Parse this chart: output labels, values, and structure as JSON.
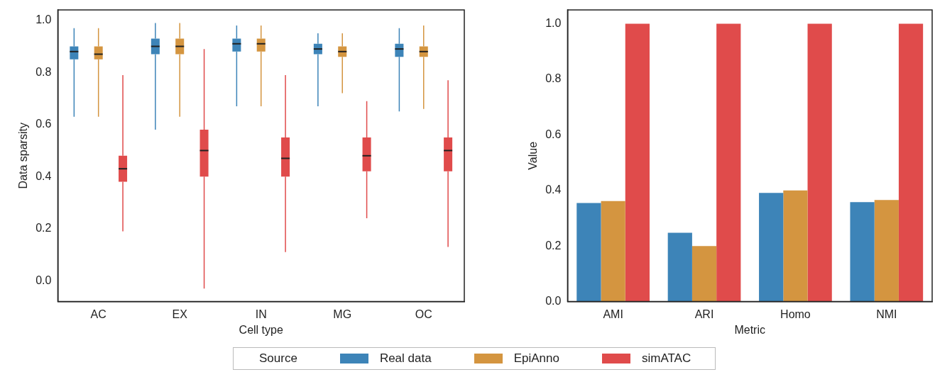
{
  "chart_data": [
    {
      "type": "box",
      "xlabel": "Cell type",
      "ylabel": "Data sparsity",
      "categories": [
        "AC",
        "EX",
        "IN",
        "MG",
        "OC"
      ],
      "ylim": [
        -0.08,
        1.04
      ],
      "yticks": [
        {
          "value": 0,
          "label": "0.0"
        },
        {
          "value": 0.2,
          "label": "0.2"
        },
        {
          "value": 0.4,
          "label": "0.4"
        },
        {
          "value": 0.6,
          "label": "0.6"
        },
        {
          "value": 0.8,
          "label": "0.8"
        },
        {
          "value": 1,
          "label": "1.0"
        }
      ],
      "legend": "bottom",
      "legend_title": "Source",
      "series": [
        {
          "name": "Real data",
          "color": "#3d84b8",
          "boxes": [
            {
              "low": 0.63,
              "q1": 0.85,
              "median": 0.88,
              "q3": 0.9,
              "high": 0.97
            },
            {
              "low": 0.58,
              "q1": 0.87,
              "median": 0.9,
              "q3": 0.93,
              "high": 0.99
            },
            {
              "low": 0.67,
              "q1": 0.88,
              "median": 0.91,
              "q3": 0.93,
              "high": 0.98
            },
            {
              "low": 0.67,
              "q1": 0.87,
              "median": 0.89,
              "q3": 0.91,
              "high": 0.95
            },
            {
              "low": 0.65,
              "q1": 0.86,
              "median": 0.89,
              "q3": 0.91,
              "high": 0.97
            }
          ]
        },
        {
          "name": "EpiAnno",
          "color": "#d49540",
          "boxes": [
            {
              "low": 0.63,
              "q1": 0.85,
              "median": 0.87,
              "q3": 0.9,
              "high": 0.97
            },
            {
              "low": 0.63,
              "q1": 0.87,
              "median": 0.9,
              "q3": 0.93,
              "high": 0.99
            },
            {
              "low": 0.67,
              "q1": 0.88,
              "median": 0.91,
              "q3": 0.93,
              "high": 0.98
            },
            {
              "low": 0.72,
              "q1": 0.86,
              "median": 0.88,
              "q3": 0.9,
              "high": 0.95
            },
            {
              "low": 0.66,
              "q1": 0.86,
              "median": 0.88,
              "q3": 0.9,
              "high": 0.98
            }
          ]
        },
        {
          "name": "simATAC",
          "color": "#e04b4b",
          "boxes": [
            {
              "low": 0.19,
              "q1": 0.38,
              "median": 0.43,
              "q3": 0.48,
              "high": 0.79
            },
            {
              "low": -0.03,
              "q1": 0.4,
              "median": 0.5,
              "q3": 0.58,
              "high": 0.89
            },
            {
              "low": 0.11,
              "q1": 0.4,
              "median": 0.47,
              "q3": 0.55,
              "high": 0.79
            },
            {
              "low": 0.24,
              "q1": 0.42,
              "median": 0.48,
              "q3": 0.55,
              "high": 0.69
            },
            {
              "low": 0.13,
              "q1": 0.42,
              "median": 0.5,
              "q3": 0.55,
              "high": 0.77
            }
          ]
        }
      ]
    },
    {
      "type": "bar",
      "xlabel": "Metric",
      "ylabel": "Value",
      "categories": [
        "AMI",
        "ARI",
        "Homo",
        "NMI"
      ],
      "ylim": [
        0,
        1.05
      ],
      "yticks": [
        {
          "value": 0,
          "label": "0.0"
        },
        {
          "value": 0.2,
          "label": "0.2"
        },
        {
          "value": 0.4,
          "label": "0.4"
        },
        {
          "value": 0.6,
          "label": "0.6"
        },
        {
          "value": 0.8,
          "label": "0.8"
        },
        {
          "value": 1,
          "label": "1.0"
        }
      ],
      "series": [
        {
          "color": "#3d84b8",
          "values": [
            0.355,
            0.248,
            0.391,
            0.358
          ]
        },
        {
          "color": "#d49540",
          "values": [
            0.362,
            0.2,
            0.4,
            0.366
          ]
        },
        {
          "color": "#e04b4b",
          "values": [
            1,
            1,
            1,
            1
          ]
        }
      ]
    }
  ]
}
